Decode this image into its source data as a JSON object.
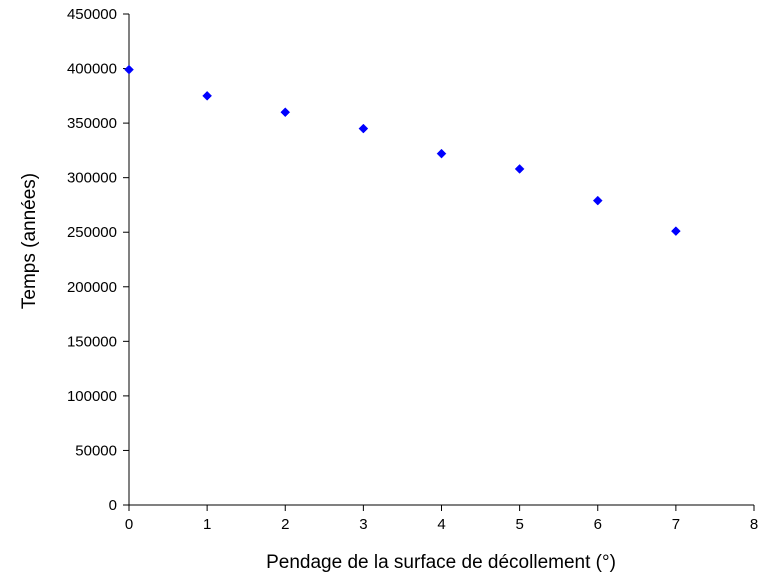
{
  "chart_data": {
    "type": "scatter",
    "title": "",
    "xlabel": "Pendage de la surface de décollement (°)",
    "ylabel": "Temps (années)",
    "xlim": [
      0,
      8
    ],
    "ylim": [
      0,
      450000
    ],
    "x_ticks": [
      0,
      1,
      2,
      3,
      4,
      5,
      6,
      7,
      8
    ],
    "y_ticks": [
      0,
      50000,
      100000,
      150000,
      200000,
      250000,
      300000,
      350000,
      400000,
      450000
    ],
    "grid": false,
    "legend": "none",
    "series": [
      {
        "color": "#0000ff",
        "marker": "diamond",
        "x": [
          0,
          1,
          2,
          3,
          4,
          5,
          6,
          7
        ],
        "y": [
          399000,
          375000,
          360000,
          345000,
          322000,
          308000,
          279000,
          251000
        ]
      }
    ]
  }
}
